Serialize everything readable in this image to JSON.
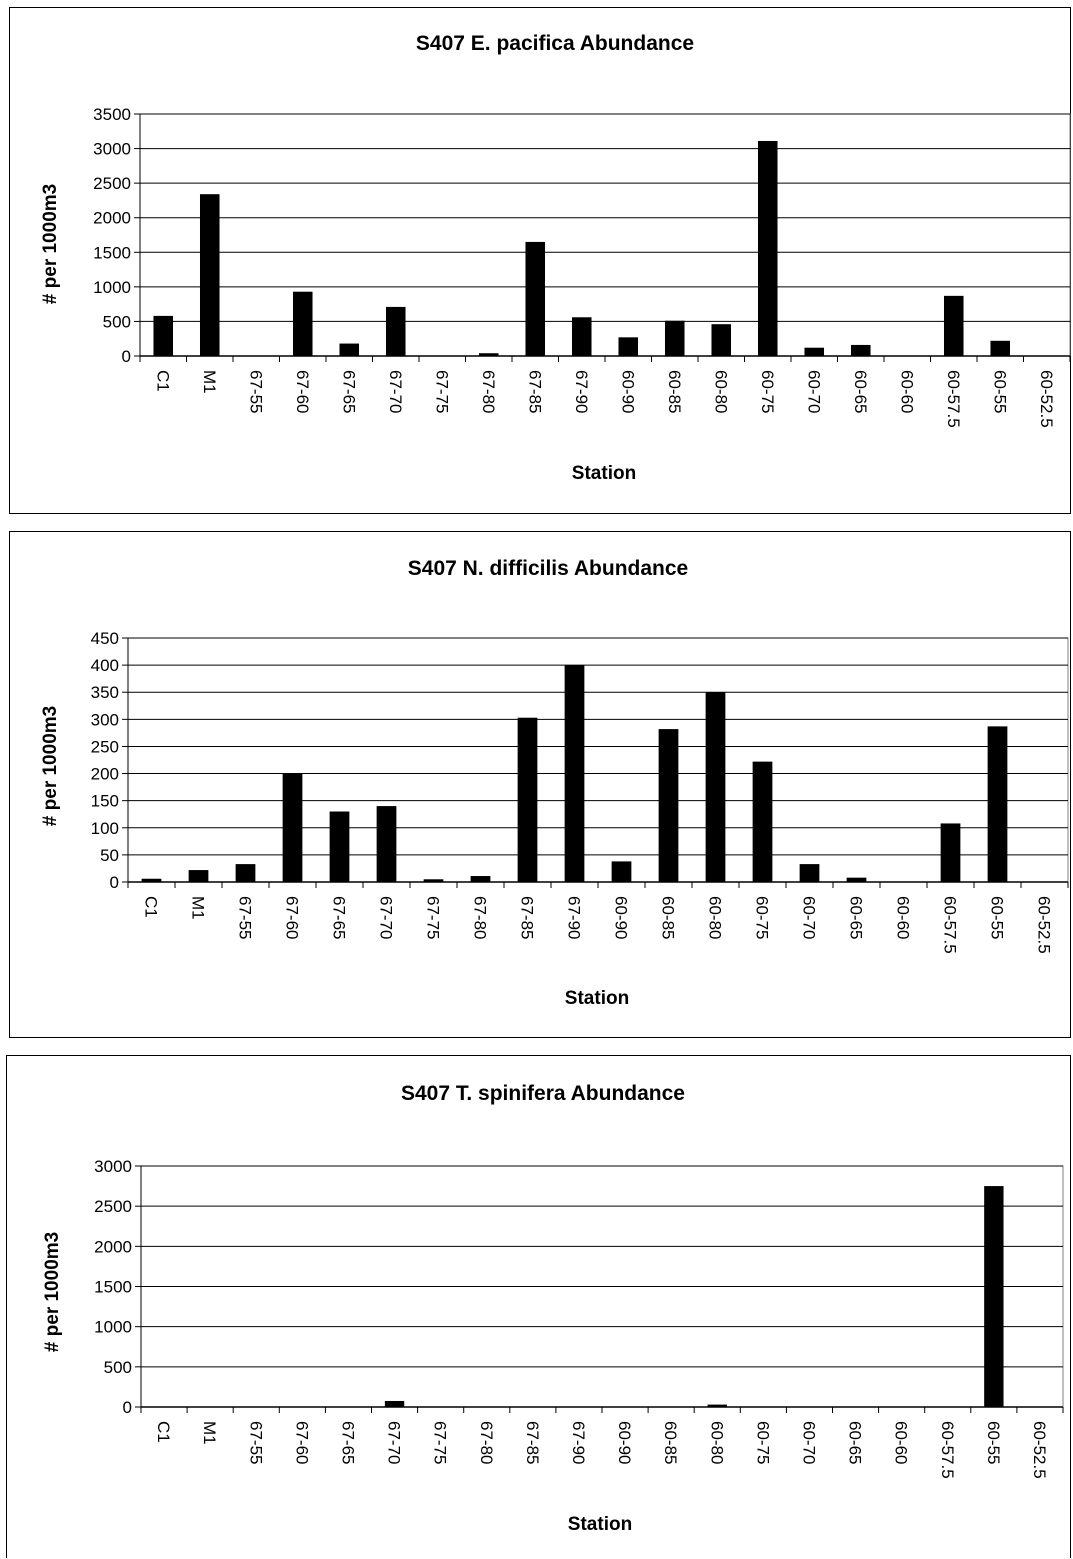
{
  "colors": {
    "bar": "#000000",
    "grid": "#000000",
    "plot_border": "#808080",
    "background": "#ffffff"
  },
  "chart_data": [
    {
      "type": "bar",
      "title": "S407 E. pacifica Abundance",
      "xlabel": "Station",
      "ylabel": "# per 1000m3",
      "categories": [
        "C1",
        "M1",
        "67-55",
        "67-60",
        "67-65",
        "67-70",
        "67-75",
        "67-80",
        "67-85",
        "67-90",
        "60-90",
        "60-85",
        "60-80",
        "60-75",
        "60-70",
        "60-65",
        "60-60",
        "60-57.5",
        "60-55",
        "60-52.5"
      ],
      "values": [
        580,
        2340,
        0,
        930,
        180,
        710,
        0,
        40,
        1650,
        560,
        270,
        510,
        460,
        3110,
        120,
        160,
        0,
        870,
        220,
        0
      ],
      "ylim": [
        0,
        3500
      ],
      "yticks": [
        "0",
        "500",
        "1000",
        "1500",
        "2000",
        "2500",
        "3000",
        "3500"
      ],
      "grid": true
    },
    {
      "type": "bar",
      "title": "S407 N. difficilis Abundance",
      "xlabel": "Station",
      "ylabel": "# per 1000m3",
      "categories": [
        "C1",
        "M1",
        "67-55",
        "67-60",
        "67-65",
        "67-70",
        "67-75",
        "67-80",
        "67-85",
        "67-90",
        "60-90",
        "60-85",
        "60-80",
        "60-75",
        "60-70",
        "60-65",
        "60-60",
        "60-57.5",
        "60-55",
        "60-52.5"
      ],
      "values": [
        6,
        22,
        33,
        200,
        130,
        140,
        5,
        11,
        303,
        400,
        38,
        282,
        350,
        222,
        33,
        8,
        0,
        108,
        287,
        0
      ],
      "ylim": [
        0,
        450
      ],
      "yticks": [
        "0",
        "50",
        "100",
        "150",
        "200",
        "250",
        "300",
        "350",
        "400",
        "450"
      ],
      "grid": true
    },
    {
      "type": "bar",
      "title": "S407 T. spinifera Abundance",
      "xlabel": "Station",
      "ylabel": "# per 1000m3",
      "categories": [
        "C1",
        "M1",
        "67-55",
        "67-60",
        "67-65",
        "67-70",
        "67-75",
        "67-80",
        "67-85",
        "67-90",
        "60-90",
        "60-85",
        "60-80",
        "60-75",
        "60-70",
        "60-65",
        "60-60",
        "60-57.5",
        "60-55",
        "60-52.5"
      ],
      "values": [
        0,
        0,
        0,
        0,
        0,
        75,
        0,
        0,
        0,
        0,
        0,
        0,
        30,
        0,
        0,
        0,
        0,
        0,
        2750,
        0
      ],
      "ylim": [
        0,
        3000
      ],
      "yticks": [
        "0",
        "500",
        "1000",
        "1500",
        "2000",
        "2500",
        "3000"
      ],
      "grid": true
    }
  ]
}
